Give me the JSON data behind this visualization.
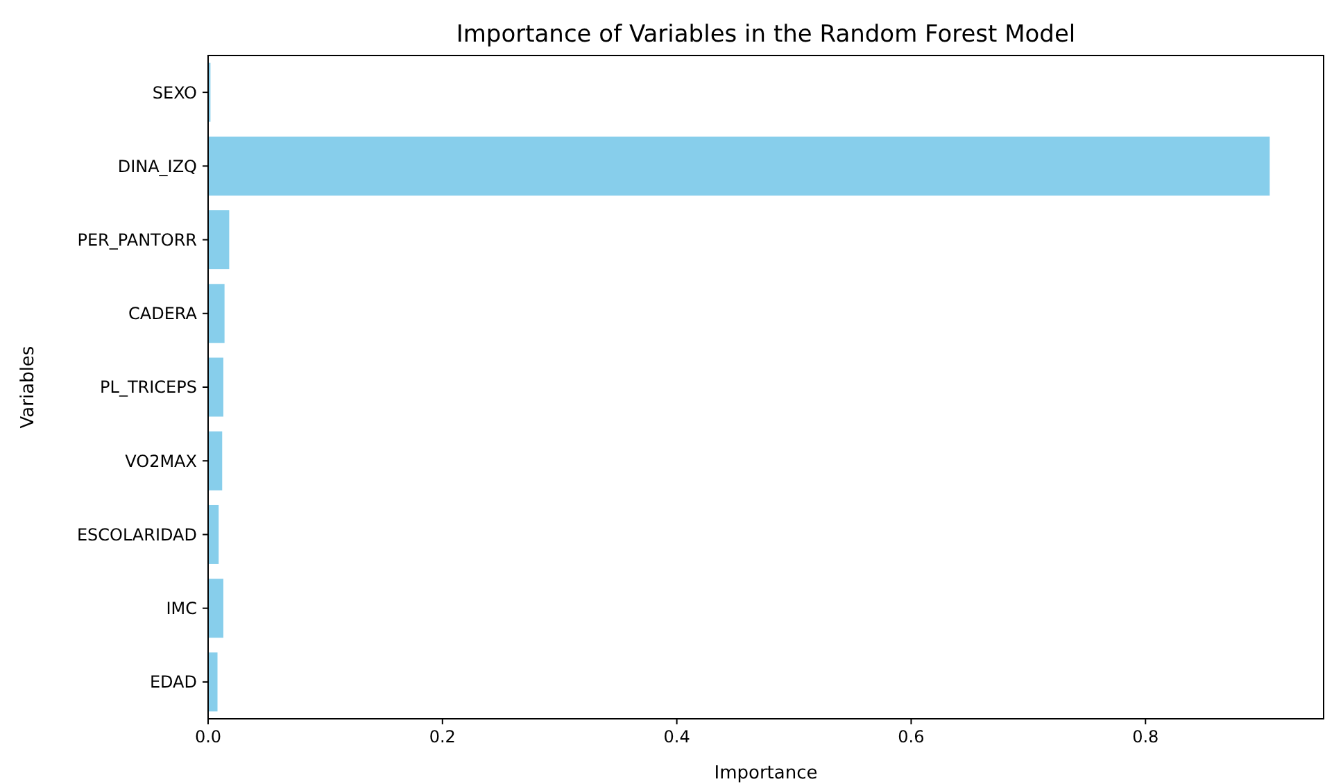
{
  "chart_data": {
    "type": "bar",
    "orientation": "horizontal",
    "title": "Importance of Variables in the Random Forest Model",
    "xlabel": "Importance",
    "ylabel": "Variables",
    "categories": [
      "SEXO",
      "DINA_IZQ",
      "PER_PANTORR",
      "CADERA",
      "PL_TRICEPS",
      "VO2MAX",
      "ESCOLARIDAD",
      "IMC",
      "EDAD"
    ],
    "values": [
      0.002,
      0.906,
      0.018,
      0.014,
      0.013,
      0.012,
      0.009,
      0.013,
      0.008
    ],
    "color": "#87ceeb",
    "xlim": [
      0,
      0.952
    ],
    "xticks": [
      {
        "value": 0,
        "label": "0.0"
      },
      {
        "value": 0.2,
        "label": "0.2"
      },
      {
        "value": 0.4,
        "label": "0.4"
      },
      {
        "value": 0.6,
        "label": "0.6"
      },
      {
        "value": 0.8,
        "label": "0.8"
      }
    ],
    "grid": false
  }
}
